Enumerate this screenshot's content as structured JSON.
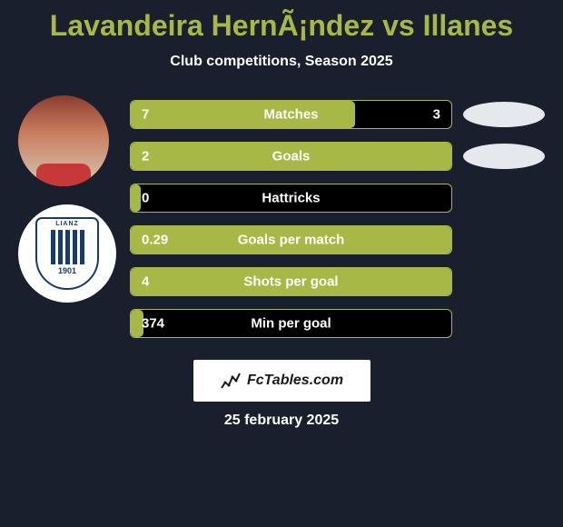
{
  "title": "Lavandeira HernÃ¡ndez vs Illanes",
  "subtitle": "Club competitions, Season 2025",
  "title_color": "#a8b847",
  "background_color": "#1a1f2e",
  "bar_fill_color": "#a8b847",
  "bar_bg_color": "#000000",
  "text_color": "#ffffff",
  "club_badge": {
    "top_text": "LIANZ",
    "year": "1901",
    "primary_color": "#1a3a6e"
  },
  "stats": [
    {
      "label": "Matches",
      "left_value": "7",
      "right_value": "3",
      "fill_pct": 70,
      "show_right": true,
      "show_oval": true
    },
    {
      "label": "Goals",
      "left_value": "2",
      "right_value": "",
      "fill_pct": 100,
      "show_right": false,
      "show_oval": true
    },
    {
      "label": "Hattricks",
      "left_value": "0",
      "right_value": "",
      "fill_pct": 3,
      "show_right": false,
      "show_oval": false
    },
    {
      "label": "Goals per match",
      "left_value": "0.29",
      "right_value": "",
      "fill_pct": 100,
      "show_right": false,
      "show_oval": false
    },
    {
      "label": "Shots per goal",
      "left_value": "4",
      "right_value": "",
      "fill_pct": 100,
      "show_right": false,
      "show_oval": false
    },
    {
      "label": "Min per goal",
      "left_value": "374",
      "right_value": "",
      "fill_pct": 4,
      "show_right": false,
      "show_oval": false
    }
  ],
  "footer": {
    "brand": "FcTables.com",
    "date": "25 february 2025"
  }
}
